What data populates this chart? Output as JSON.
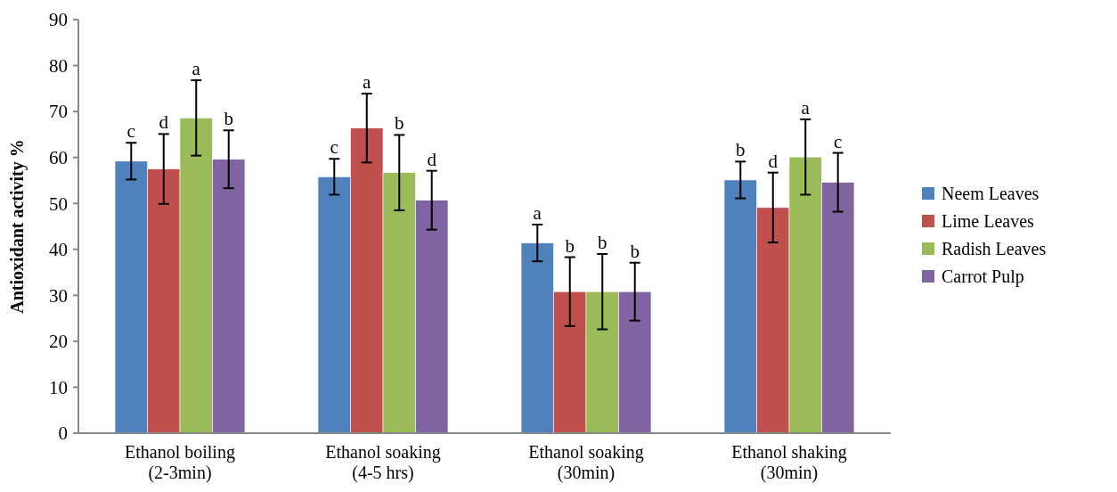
{
  "chart_data": {
    "type": "bar",
    "ylabel": "Antioxidant activity %",
    "categories": [
      "Ethanol boiling\n(2-3min)",
      "Ethanol soaking\n(4-5 hrs)",
      "Ethanol soaking\n(30min)",
      "Ethanol shaking\n(30min)"
    ],
    "series": [
      {
        "name": "Neem Leaves",
        "color": "#4f81bd",
        "values": [
          59.2,
          55.8,
          41.4,
          55.1
        ],
        "errors": [
          4,
          3.9,
          4,
          4
        ],
        "value_labels": [
          "c",
          "c",
          "a",
          "b"
        ]
      },
      {
        "name": "Lime Leaves",
        "color": "#c0504d",
        "values": [
          57.5,
          66.4,
          30.8,
          49.1
        ],
        "errors": [
          7.6,
          7.5,
          7.5,
          7.6
        ],
        "value_labels": [
          "d",
          "a",
          "b",
          "d"
        ]
      },
      {
        "name": "Radish Leaves",
        "color": "#9bbb59",
        "values": [
          68.6,
          56.7,
          30.8,
          60.1
        ],
        "errors": [
          8.2,
          8.2,
          8.2,
          8.2
        ],
        "value_labels": [
          "a",
          "b",
          "b",
          "a"
        ]
      },
      {
        "name": "Carrot Pulp",
        "color": "#8064a2",
        "values": [
          59.6,
          50.7,
          30.8,
          54.6
        ],
        "errors": [
          6.3,
          6.4,
          6.3,
          6.4
        ],
        "value_labels": [
          "b",
          "d",
          "b",
          "c"
        ]
      }
    ],
    "ylim": [
      0,
      90
    ],
    "yticks": [
      0,
      10,
      20,
      30,
      40,
      50,
      60,
      70,
      80,
      90
    ],
    "grid": false,
    "legend": "right"
  }
}
